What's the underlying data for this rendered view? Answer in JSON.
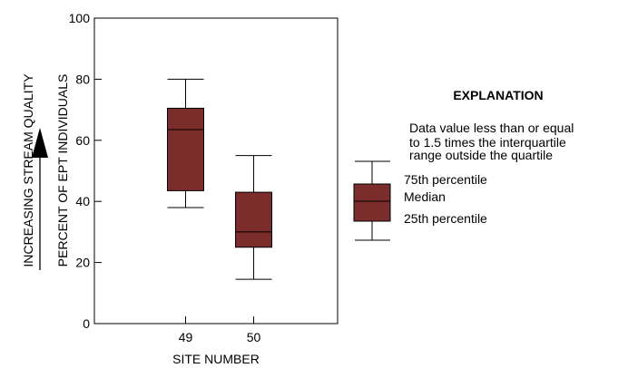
{
  "chart_data": {
    "type": "boxplot",
    "xlabel": "SITE NUMBER",
    "ylabel": "PERCENT OF EPT INDIVIDUALS",
    "ylabel_secondary": "INCREASING STREAM QUALITY",
    "ylim": [
      0,
      100
    ],
    "yticks": [
      0,
      20,
      40,
      60,
      80,
      100
    ],
    "box_color": "#7b2d2b",
    "categories": [
      "49",
      "50"
    ],
    "boxes": [
      {
        "site": "49",
        "whisker_low": 38,
        "q1": 43.5,
        "median": 63.5,
        "q3": 70.5,
        "whisker_high": 80
      },
      {
        "site": "50",
        "whisker_low": 14.5,
        "q1": 25,
        "median": 30,
        "q3": 43,
        "whisker_high": 55
      }
    ]
  },
  "explanation": {
    "title": "EXPLANATION",
    "whisker_note": [
      "Data value less than or equal",
      "to 1.5 times the interquartile",
      "range outside the quartile"
    ],
    "p75_label": "75th percentile",
    "median_label": "Median",
    "p25_label": "25th percentile"
  }
}
